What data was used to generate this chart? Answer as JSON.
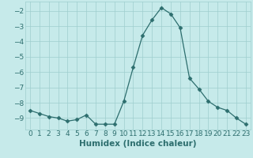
{
  "x": [
    0,
    1,
    2,
    3,
    4,
    5,
    6,
    7,
    8,
    9,
    10,
    11,
    12,
    13,
    14,
    15,
    16,
    17,
    18,
    19,
    20,
    21,
    22,
    23
  ],
  "y": [
    -8.5,
    -8.7,
    -8.9,
    -9.0,
    -9.2,
    -9.1,
    -8.8,
    -9.4,
    -9.4,
    -9.4,
    -7.9,
    -5.7,
    -3.6,
    -2.6,
    -1.8,
    -2.2,
    -3.1,
    -6.4,
    -7.1,
    -7.9,
    -8.3,
    -8.5,
    -9.0,
    -9.4
  ],
  "line_color": "#2d6e6e",
  "marker": "D",
  "marker_size": 2.5,
  "bg_color": "#c6eaea",
  "grid_color": "#9ecece",
  "xlabel": "Humidex (Indice chaleur)",
  "xlim": [
    -0.5,
    23.5
  ],
  "ylim": [
    -9.75,
    -1.4
  ],
  "yticks": [
    -9,
    -8,
    -7,
    -6,
    -5,
    -4,
    -3,
    -2
  ],
  "xticks": [
    0,
    1,
    2,
    3,
    4,
    5,
    6,
    7,
    8,
    9,
    10,
    11,
    12,
    13,
    14,
    15,
    16,
    17,
    18,
    19,
    20,
    21,
    22,
    23
  ],
  "tick_fontsize": 6.5,
  "xlabel_fontsize": 7.5,
  "linewidth": 0.9
}
